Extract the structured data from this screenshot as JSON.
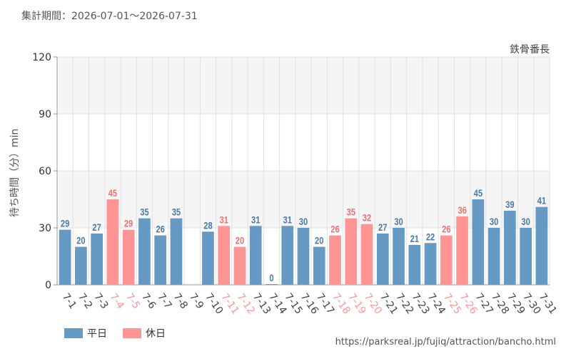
{
  "header": {
    "period": "集計期間：2026-07-01～2026-07-31"
  },
  "attraction_name": "鉄骨番長",
  "source_url": "https://parksreal.jp/fujiq/attraction/bancho.html",
  "colors": {
    "weekday": "#6699c4",
    "holiday": "#ff9494",
    "weekday_label": "#4a7aa8",
    "holiday_label": "#f07070",
    "band": "#f5f5f5",
    "grid": "#e2e2e2"
  },
  "legend": {
    "weekday": "平日",
    "holiday": "休日"
  },
  "chart_data": {
    "type": "bar",
    "ylabel": "待ち時間（分）min",
    "ylim": [
      0,
      120
    ],
    "yticks": [
      0,
      30,
      60,
      90,
      120
    ],
    "categories": [
      "7-1",
      "7-2",
      "7-3",
      "7-4",
      "7-5",
      "7-6",
      "7-7",
      "7-8",
      "7-9",
      "7-10",
      "7-11",
      "7-12",
      "7-13",
      "7-14",
      "7-15",
      "7-16",
      "7-17",
      "7-18",
      "7-19",
      "7-20",
      "7-21",
      "7-22",
      "7-23",
      "7-24",
      "7-25",
      "7-26",
      "7-27",
      "7-28",
      "7-29",
      "7-30",
      "7-31"
    ],
    "values": [
      29,
      20,
      27,
      45,
      29,
      35,
      26,
      35,
      null,
      28,
      31,
      20,
      31,
      0,
      31,
      30,
      20,
      26,
      35,
      32,
      27,
      30,
      21,
      22,
      26,
      36,
      45,
      30,
      39,
      30,
      41
    ],
    "day_type": [
      "weekday",
      "weekday",
      "weekday",
      "holiday",
      "holiday",
      "weekday",
      "weekday",
      "weekday",
      "weekday",
      "weekday",
      "holiday",
      "holiday",
      "weekday",
      "weekday",
      "weekday",
      "weekday",
      "weekday",
      "holiday",
      "holiday",
      "holiday",
      "weekday",
      "weekday",
      "weekday",
      "weekday",
      "holiday",
      "holiday",
      "weekday",
      "weekday",
      "weekday",
      "weekday",
      "weekday"
    ],
    "legend_position": "bottom-left",
    "grid": true
  }
}
